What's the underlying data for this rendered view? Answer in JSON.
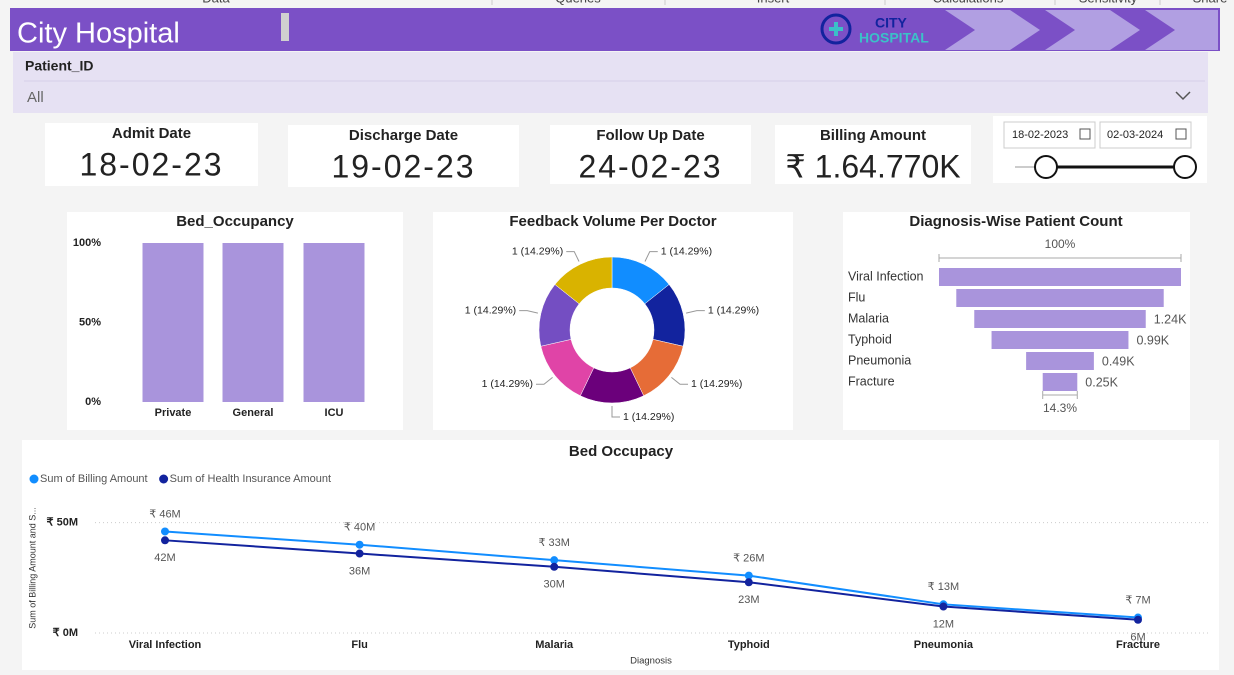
{
  "menu": [
    "Data",
    "Queries",
    "Insert",
    "Calculations",
    "Sensitivity",
    "Share"
  ],
  "header": {
    "title": "City Hospital",
    "logo_top": "CITY",
    "logo_bottom": "HOSPITAL"
  },
  "filter": {
    "label": "Patient_ID",
    "value": "All"
  },
  "cards": [
    {
      "label": "Admit Date",
      "value": "18-02-23"
    },
    {
      "label": "Discharge Date",
      "value": "19-02-23"
    },
    {
      "label": "Follow Up Date",
      "value": "24-02-23"
    },
    {
      "label": "Billing Amount",
      "value": "₹ 1.64.770K"
    }
  ],
  "date_range": {
    "start": "18-02-2023",
    "end": "02-03-2024"
  },
  "chart_data": [
    {
      "type": "bar",
      "title": "Bed_Occupancy",
      "categories": [
        "Private",
        "General",
        "ICU"
      ],
      "values": [
        100,
        100,
        100
      ],
      "color": "#a994dc",
      "ylim": [
        0,
        100
      ],
      "yticks": [
        {
          "value": 0,
          "label": "0%"
        },
        {
          "value": 50,
          "label": "50%"
        },
        {
          "value": 100,
          "label": "100%"
        }
      ]
    },
    {
      "type": "pie",
      "title": "Feedback Volume Per Doctor",
      "values": [
        1,
        1,
        1,
        1,
        1,
        1,
        1
      ],
      "value_labels": [
        "1 (14.29%)",
        "1 (14.29%)",
        "1 (14.29%)",
        "1 (14.29%)",
        "1 (14.29%)",
        "1 (14.29%)",
        "1 (14.29%)"
      ],
      "colors": [
        "#118dff",
        "#12239e",
        "#e66c37",
        "#6b007b",
        "#e044a7",
        "#744ec2",
        "#d9b300"
      ]
    },
    {
      "type": "funnel",
      "title": "Diagnosis-Wise Patient Count",
      "categories": [
        "Viral Infection",
        "Flu",
        "Malaria",
        "Typhoid",
        "Pneumonia",
        "Fracture"
      ],
      "values": [
        1750,
        1500,
        1240,
        990,
        490,
        250
      ],
      "value_labels": [
        null,
        null,
        "1.24K",
        "0.99K",
        "0.49K",
        "0.25K"
      ],
      "top_label": "100%",
      "bottom_label": "14.3%",
      "color": "#a994dc"
    },
    {
      "type": "line",
      "title": "Bed Occupacy",
      "categories": [
        "Viral Infection",
        "Flu",
        "Malaria",
        "Typhoid",
        "Pneumonia",
        "Fracture"
      ],
      "series": [
        {
          "name": "Sum of Billing Amount",
          "color": "#118dff",
          "values": [
            46,
            40,
            33,
            26,
            13,
            7
          ],
          "value_labels": [
            "₹ 46M",
            "₹ 40M",
            "₹ 33M",
            "₹ 26M",
            "₹ 13M",
            "₹ 7M"
          ]
        },
        {
          "name": "Sum of Health Insurance Amount",
          "color": "#12239e",
          "values": [
            42,
            36,
            30,
            23,
            12,
            6
          ],
          "value_labels": [
            "42M",
            "36M",
            "30M",
            "23M",
            "12M",
            "6M"
          ]
        }
      ],
      "ylim": [
        0,
        58
      ],
      "yticks": [
        {
          "value": 0,
          "label": "₹ 0M"
        },
        {
          "value": 50,
          "label": "₹ 50M"
        }
      ],
      "ylabel": "Sum of Billing Amount and S...",
      "xlabel": "Diagnosis",
      "grid": true
    }
  ]
}
